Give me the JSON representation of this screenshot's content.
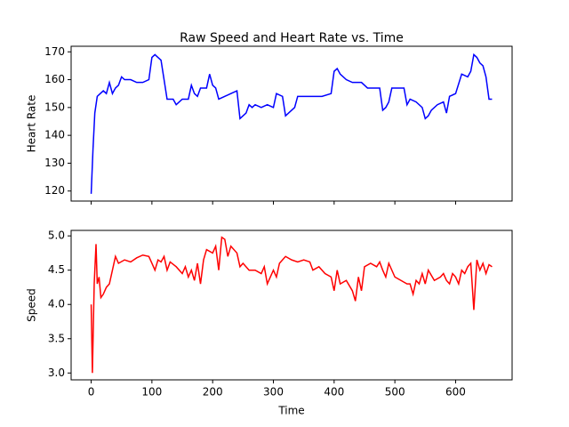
{
  "chart_data": [
    {
      "type": "line",
      "title": "Raw Speed and Heart Rate vs. Time",
      "ylabel": "Heart Rate",
      "x": [
        0,
        3,
        6,
        10,
        15,
        20,
        25,
        30,
        35,
        40,
        45,
        50,
        55,
        65,
        75,
        85,
        95,
        100,
        105,
        110,
        115,
        120,
        125,
        135,
        140,
        145,
        150,
        160,
        165,
        170,
        175,
        180,
        190,
        195,
        200,
        205,
        210,
        220,
        230,
        240,
        245,
        250,
        255,
        260,
        265,
        270,
        280,
        290,
        300,
        305,
        315,
        320,
        325,
        335,
        340,
        360,
        380,
        395,
        400,
        405,
        410,
        420,
        430,
        445,
        455,
        470,
        475,
        480,
        485,
        490,
        495,
        515,
        520,
        525,
        535,
        545,
        550,
        555,
        560,
        570,
        580,
        585,
        590,
        600,
        610,
        620,
        625,
        630,
        635,
        640,
        645,
        650,
        655,
        660
      ],
      "series": [
        {
          "color": "#0000ff",
          "values": [
            119,
            135,
            148,
            154,
            155,
            156,
            155,
            159,
            155,
            157,
            158,
            161,
            160,
            160,
            159,
            159,
            160,
            168,
            169,
            168,
            167,
            160,
            153,
            153,
            151,
            152,
            153,
            153,
            158,
            155,
            154,
            157,
            157,
            162,
            158,
            157,
            153,
            154,
            155,
            156,
            146,
            147,
            148,
            151,
            150,
            151,
            150,
            151,
            150,
            155,
            154,
            147,
            148,
            150,
            154,
            154,
            154,
            155,
            163,
            164,
            162,
            160,
            159,
            159,
            157,
            157,
            157,
            149,
            150,
            152,
            157,
            157,
            151,
            153,
            152,
            150,
            146,
            147,
            149,
            151,
            152,
            148,
            154,
            155,
            162,
            161,
            163,
            169,
            168,
            166,
            165,
            161,
            153,
            153
          ]
        }
      ],
      "xlim": [
        -33,
        693
      ],
      "xticks": [
        0,
        100,
        200,
        300,
        400,
        500,
        600
      ],
      "ylim": [
        116.4,
        172
      ],
      "yticks": [
        120,
        130,
        140,
        150,
        160,
        170
      ]
    },
    {
      "type": "line",
      "xlabel": "Time",
      "ylabel": "Speed",
      "x": [
        0,
        2,
        5,
        8,
        10,
        13,
        16,
        20,
        25,
        30,
        35,
        40,
        45,
        55,
        65,
        75,
        85,
        95,
        100,
        105,
        110,
        115,
        120,
        125,
        130,
        140,
        150,
        155,
        160,
        165,
        170,
        175,
        180,
        185,
        190,
        200,
        205,
        210,
        215,
        220,
        225,
        230,
        240,
        245,
        250,
        260,
        270,
        280,
        285,
        290,
        300,
        305,
        310,
        320,
        330,
        340,
        350,
        360,
        365,
        375,
        385,
        395,
        400,
        405,
        410,
        420,
        430,
        435,
        440,
        445,
        450,
        460,
        470,
        475,
        480,
        485,
        490,
        500,
        510,
        520,
        525,
        530,
        535,
        540,
        545,
        550,
        555,
        565,
        575,
        580,
        585,
        590,
        595,
        600,
        605,
        610,
        615,
        620,
        625,
        630,
        635,
        640,
        645,
        650,
        655,
        660
      ],
      "series": [
        {
          "color": "#ff0000",
          "values": [
            4.0,
            3.0,
            4.3,
            4.88,
            4.3,
            4.4,
            4.1,
            4.15,
            4.25,
            4.3,
            4.5,
            4.7,
            4.6,
            4.65,
            4.62,
            4.68,
            4.72,
            4.7,
            4.6,
            4.5,
            4.65,
            4.62,
            4.7,
            4.5,
            4.62,
            4.55,
            4.45,
            4.55,
            4.4,
            4.5,
            4.35,
            4.6,
            4.3,
            4.65,
            4.8,
            4.75,
            4.85,
            4.5,
            4.98,
            4.95,
            4.7,
            4.85,
            4.75,
            4.55,
            4.6,
            4.5,
            4.5,
            4.45,
            4.55,
            4.3,
            4.5,
            4.4,
            4.6,
            4.7,
            4.65,
            4.62,
            4.65,
            4.62,
            4.5,
            4.55,
            4.45,
            4.4,
            4.2,
            4.5,
            4.3,
            4.35,
            4.2,
            4.05,
            4.4,
            4.2,
            4.55,
            4.6,
            4.55,
            4.62,
            4.5,
            4.4,
            4.6,
            4.4,
            4.35,
            4.3,
            4.3,
            4.15,
            4.35,
            4.3,
            4.45,
            4.3,
            4.5,
            4.35,
            4.4,
            4.45,
            4.35,
            4.3,
            4.45,
            4.4,
            4.3,
            4.5,
            4.45,
            4.55,
            4.6,
            3.92,
            4.65,
            4.5,
            4.6,
            4.45,
            4.58,
            4.55
          ]
        }
      ],
      "xlim": [
        -33,
        693
      ],
      "xticks": [
        0,
        100,
        200,
        300,
        400,
        500,
        600
      ],
      "ylim": [
        2.9,
        5.08
      ],
      "yticks": [
        {
          "value": 3,
          "label": "3.0"
        },
        3.5,
        {
          "value": 4,
          "label": "4.0"
        },
        4.5,
        {
          "value": 5,
          "label": "5.0"
        }
      ]
    }
  ]
}
